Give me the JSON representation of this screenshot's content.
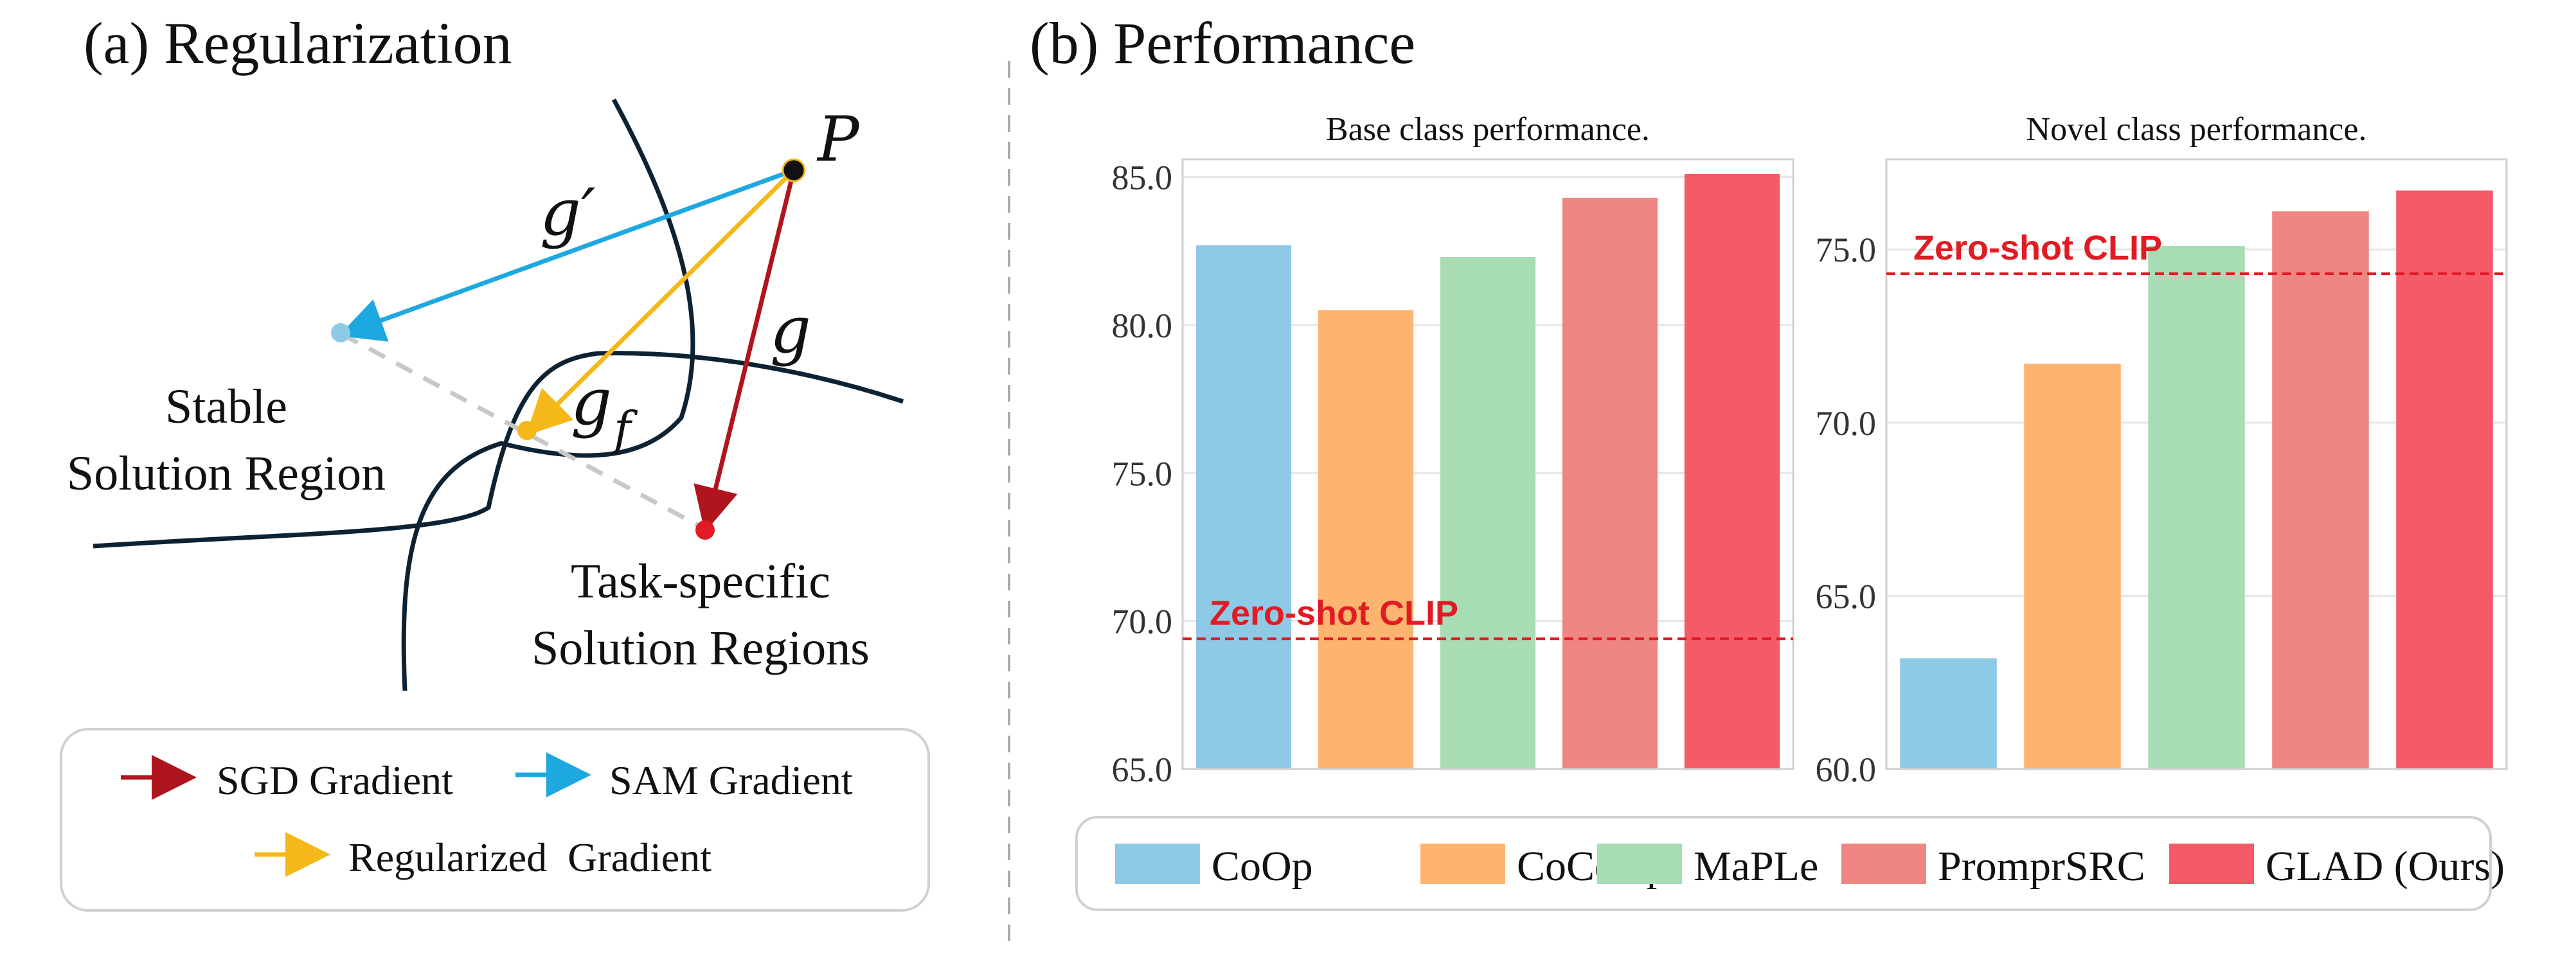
{
  "panel_a": {
    "title": "(a) Regularization",
    "point_label": "P",
    "vec_g_prime": "g′",
    "vec_g": "g",
    "vec_gf_main": "g",
    "vec_gf_sub": "f",
    "stable_line1": "Stable",
    "stable_line2": "Solution Region",
    "task_line1": "Task-specific",
    "task_line2": "Solution Regions",
    "legend": {
      "sgd": "SGD Gradient",
      "sam": "SAM Gradient",
      "reg": "Regularized  Gradient"
    },
    "colors": {
      "sgd": "#b0141c",
      "sam": "#1ea8e0",
      "reg": "#f5b81a",
      "curve": "#0d2233",
      "dash": "#c8c8c8"
    }
  },
  "panel_b": {
    "title": "(b) Performance",
    "legend_items": [
      {
        "label": "CoOp",
        "color": "#8ecae6"
      },
      {
        "label": "CoCoOp",
        "color": "#fdb46e"
      },
      {
        "label": "MaPLe",
        "color": "#a8dcb4"
      },
      {
        "label": "PromprSRC",
        "color": "#f08682"
      },
      {
        "label": "GLAD (Ours)",
        "color": "#f55a67"
      }
    ]
  },
  "chart_data": [
    {
      "type": "bar",
      "title": "Base class performance.",
      "categories": [
        "CoOp",
        "CoCoOp",
        "MaPLe",
        "PromprSRC",
        "GLAD (Ours)"
      ],
      "values": [
        82.7,
        80.5,
        82.3,
        84.3,
        85.1
      ],
      "colors": [
        "#8ecae6",
        "#fdb46e",
        "#a8dcb4",
        "#f08682",
        "#f55a67"
      ],
      "ylim": [
        65.0,
        85.6
      ],
      "yticks": [
        65.0,
        70.0,
        75.0,
        80.0,
        85.0
      ],
      "ytick_labels": [
        "65.0",
        "70.0",
        "75.0",
        "80.0",
        "85.0"
      ],
      "grid": true,
      "reference_line": {
        "label": "Zero-shot CLIP",
        "value": 69.4,
        "color": "#e01b24"
      }
    },
    {
      "type": "bar",
      "title": "Novel class performance.",
      "categories": [
        "CoOp",
        "CoCoOp",
        "MaPLe",
        "PromprSRC",
        "GLAD (Ours)"
      ],
      "values": [
        63.2,
        71.7,
        75.1,
        76.1,
        76.7
      ],
      "colors": [
        "#8ecae6",
        "#fdb46e",
        "#a8dcb4",
        "#f08682",
        "#f55a67"
      ],
      "ylim": [
        60.0,
        77.6
      ],
      "yticks": [
        60.0,
        65.0,
        70.0,
        75.0
      ],
      "ytick_labels": [
        "60.0",
        "65.0",
        "70.0",
        "75.0"
      ],
      "grid": true,
      "reference_line": {
        "label": "Zero-shot CLIP",
        "value": 74.3,
        "color": "#e01b24"
      }
    }
  ]
}
